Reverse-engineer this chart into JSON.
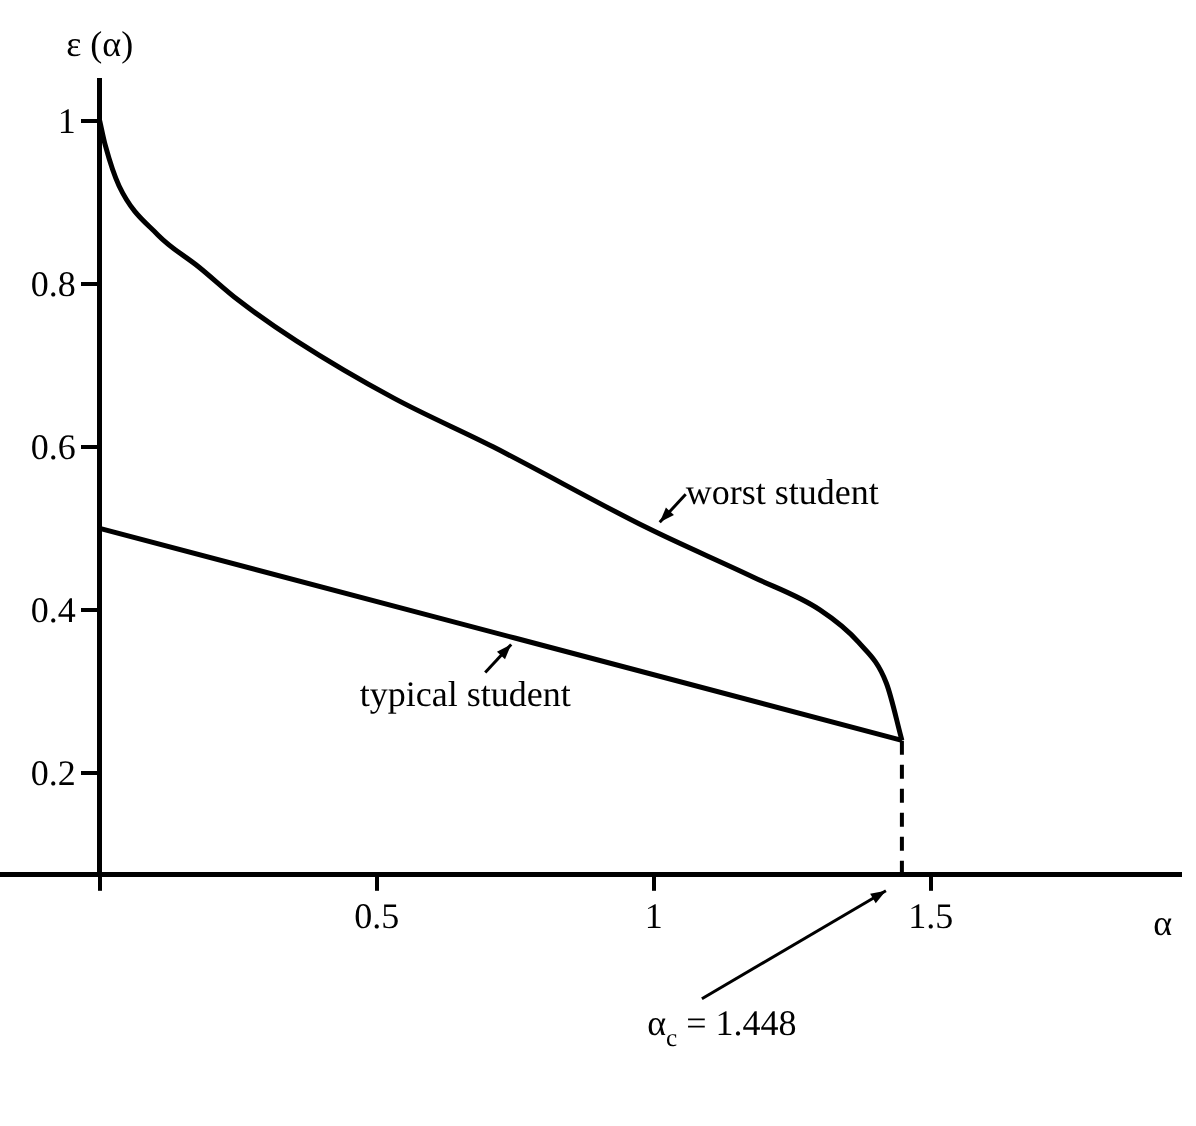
{
  "chart_data": {
    "type": "line",
    "xlabel": "α",
    "ylabel": "ε (α)",
    "xlim": [
      -0.18,
      1.95
    ],
    "ylim": [
      0.075,
      1.05
    ],
    "xticks": [
      {
        "value": 0,
        "label": null
      },
      0.5,
      1,
      1.5
    ],
    "yticks": [
      0.2,
      0.4,
      0.6,
      0.8,
      1
    ],
    "grid": false,
    "legend": false,
    "marker": "none",
    "line_style": "solid",
    "series": [
      {
        "color": "#000000",
        "x": [
          0,
          0.01,
          0.035,
          0.105,
          0.18,
          0.25,
          0.355,
          0.53,
          0.71,
          0.99,
          1.18,
          1.3,
          1.37,
          1.42,
          1.448
        ],
        "values": [
          1.0,
          0.97,
          0.92,
          0.86,
          0.82,
          0.78,
          0.73,
          0.66,
          0.6,
          0.5,
          0.44,
          0.4,
          0.36,
          0.31,
          0.24
        ]
      },
      {
        "color": "#000000",
        "x": [
          0,
          1.448
        ],
        "values": [
          0.5,
          0.24
        ]
      }
    ],
    "ref_lines": [
      {
        "axis": "x",
        "value": 1.448,
        "label": "α$_{c}$ = 1.448",
        "line_style": "dashed",
        "color": "#000000"
      }
    ],
    "annotations": [
      {
        "text": "worst student",
        "x": 1.0,
        "y": 0.5
      },
      {
        "text": "typical student",
        "x": 0.75,
        "y": 0.365
      }
    ]
  }
}
